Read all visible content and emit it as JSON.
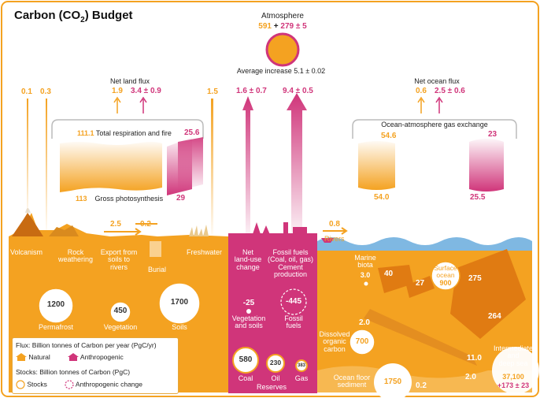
{
  "title": {
    "prefix": "Carbon (CO",
    "sub": "2",
    "suffix": ") Budget"
  },
  "colors": {
    "natural": "#f4a221",
    "anthropogenic": "#d0357a",
    "ocean": "#e07b12",
    "land_pink": "#e24b8b"
  },
  "atmosphere": {
    "label": "Atmosphere",
    "natural_stock": "591",
    "plus": "+",
    "anthro_change": "279 ± 5",
    "increase": "Average increase 5.1 ± 0.02"
  },
  "fluxes_top": {
    "volcanism_flux": "0.1",
    "weathering_flux": "0.3",
    "net_land_flux_label": "Net land flux",
    "net_land_natural": "1.9",
    "net_land_anthro": "3.4 ± 0.9",
    "freshwater_flux": "1.5",
    "landuse_flux": "1.6 ± 0.7",
    "fossil_flux": "9.4 ± 0.5",
    "net_ocean_flux_label": "Net ocean flux",
    "net_ocean_natural": "0.6",
    "net_ocean_anthro": "2.5 ± 0.6"
  },
  "land_exchange": {
    "respiration_natural": "111.1",
    "respiration_label": "Total respiration and fire",
    "respiration_anthro": "25.6",
    "photosynthesis_natural": "113",
    "photosynthesis_label": "Gross photosynthesis",
    "photosynthesis_anthro": "29"
  },
  "ocean_exchange": {
    "label": "Ocean-atmosphere gas exchange",
    "out_natural": "54.6",
    "out_anthro": "23",
    "in_natural": "54.0",
    "in_anthro": "25.5"
  },
  "surface_fluxes": {
    "export_natural": "2.5",
    "burial_flux": "0.2",
    "rivers_flux": "0.8",
    "rivers_label": "Rivers"
  },
  "surface_labels": {
    "volcanism": "Volcanism",
    "rock_weathering": "Rock\nweathering",
    "export": "Export from\nsoils to\nrivers",
    "burial": "Burial",
    "freshwater": "Freshwater",
    "land_use": "Net\nland-use\nchange",
    "fossil_fuels": "Fossil fuels\n(Coal, oil, gas)\nCement\nproduction"
  },
  "land_stocks": {
    "permafrost_value": "1200",
    "permafrost_label": "Permafrost",
    "vegetation_value": "450",
    "vegetation_label": "Vegetation",
    "soils_value": "1700",
    "soils_label": "Soils"
  },
  "anthro_stocks": {
    "veg_soils_change": "-25",
    "veg_soils_label": "Vegetation\nand soils",
    "fossil_change": "-445",
    "fossil_label": "Fossil\nfuels",
    "coal_value": "580",
    "coal_label": "Coal",
    "oil_value": "230",
    "oil_label": "Oil",
    "gas_value": "383",
    "gas_label": "Gas",
    "reserves_label": "Reserves"
  },
  "ocean": {
    "marine_biota_label": "Marine\nbiota",
    "marine_biota_value": "3.0",
    "surface_ocean_label": "Surface\nocean",
    "surface_ocean_value": "900",
    "flux_40": "40",
    "flux_27": "27",
    "flux_275": "275",
    "flux_264": "264",
    "doc_flux": "2.0",
    "doc_value": "700",
    "doc_label": "Dissolved\norganic\ncarbon",
    "deep_flux": "11.0",
    "deep_label": "Intermediate\nand\ndeep sea",
    "deep_value": "37,100",
    "deep_change": "+173 ± 23",
    "sediment_flux_a": "2.0",
    "sediment_label": "Ocean floor\nsediment",
    "sediment_value": "1750",
    "sediment_flux_b": "0.2"
  },
  "legend": {
    "flux_title": "Flux: Billion tonnes of Carbon per year (PgC/yr)",
    "natural": "Natural",
    "anthropogenic": "Anthropogenic",
    "stocks_title": "Stocks: Billion tonnes of Carbon (PgC)",
    "stocks": "Stocks",
    "anthro_change": "Anthropogenic change"
  }
}
